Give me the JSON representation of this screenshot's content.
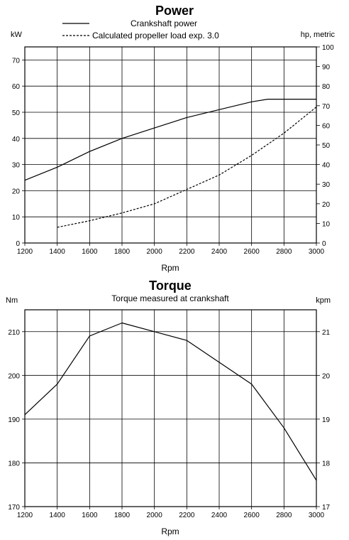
{
  "chart_data": [
    {
      "type": "line",
      "title": "Power",
      "xlabel": "Rpm",
      "ylabel_left": "kW",
      "ylabel_right": "hp, metric",
      "xlim": [
        1200,
        3000
      ],
      "ylim": [
        0,
        75
      ],
      "y2lim": [
        0,
        100
      ],
      "x_ticks": [
        1200,
        1400,
        1600,
        1800,
        2000,
        2200,
        2400,
        2600,
        2800,
        3000
      ],
      "y_ticks": [
        0,
        10,
        20,
        30,
        40,
        50,
        60,
        70
      ],
      "y2_ticks": [
        0,
        10,
        20,
        30,
        40,
        50,
        60,
        70,
        80,
        90,
        100
      ],
      "grid": true,
      "legend_position": "top",
      "series": [
        {
          "name": "Crankshaft power",
          "style": "solid",
          "x": [
            1200,
            1400,
            1600,
            1800,
            2000,
            2200,
            2400,
            2600,
            2700,
            2800,
            3000
          ],
          "y": [
            24,
            29,
            35,
            40,
            44,
            48,
            51,
            54,
            55,
            55,
            55
          ]
        },
        {
          "name": "Calculated propeller load exp. 3.0",
          "style": "dashed",
          "x": [
            1400,
            1600,
            1800,
            2000,
            2200,
            2400,
            2600,
            2800,
            3000
          ],
          "y": [
            6,
            8.5,
            11.5,
            15,
            20.5,
            26,
            33.5,
            42,
            52
          ]
        }
      ]
    },
    {
      "type": "line",
      "title": "Torque",
      "subtitle": "Torque measured at crankshaft",
      "xlabel": "Rpm",
      "ylabel_left": "Nm",
      "ylabel_right": "kpm",
      "xlim": [
        1200,
        3000
      ],
      "ylim": [
        170,
        215
      ],
      "y2lim": [
        17,
        21.5
      ],
      "x_ticks": [
        1200,
        1400,
        1600,
        1800,
        2000,
        2200,
        2400,
        2600,
        2800,
        3000
      ],
      "y_ticks": [
        170,
        180,
        190,
        200,
        210
      ],
      "y2_ticks": [
        17,
        18,
        19,
        20,
        21
      ],
      "grid": true,
      "series": [
        {
          "style": "solid",
          "x": [
            1200,
            1400,
            1600,
            1800,
            2000,
            2200,
            2400,
            2600,
            2800,
            3000
          ],
          "y": [
            191,
            198,
            209,
            212,
            210,
            208,
            203,
            198,
            188,
            176
          ]
        }
      ]
    }
  ]
}
